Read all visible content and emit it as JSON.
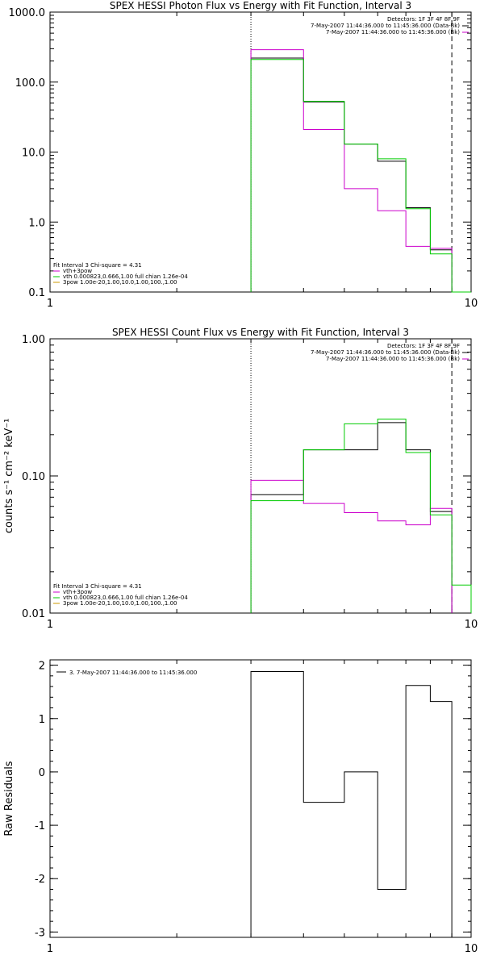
{
  "chart_data": [
    {
      "type": "line",
      "title": "SPEX HESSI Photon Flux vs Energy with Fit Function, Interval 3",
      "xlabel": "",
      "ylabel": "",
      "xscale": "log",
      "yscale": "log",
      "xlim": [
        1,
        10
      ],
      "ylim": [
        0.1,
        1000
      ],
      "xticks": [
        {
          "v": 1,
          "label": "1"
        },
        {
          "v": 10,
          "label": "10"
        }
      ],
      "yticks": [
        {
          "v": 1000,
          "label": "1000.0"
        },
        {
          "v": 100,
          "label": "100.0"
        },
        {
          "v": 10,
          "label": "10.0"
        },
        {
          "v": 1,
          "label": "1.0"
        },
        {
          "v": 0.1,
          "label": "0.1"
        }
      ],
      "vlines": [
        {
          "x": 3.0,
          "style": "dotted"
        },
        {
          "x": 9.0,
          "style": "dashed"
        }
      ],
      "info_lines": [
        "Detectors: 1F 3F 4F 8F 9F",
        "7-May-2007 11:44:36.000 to 11:45:36.000 (Data-Bk)",
        "7-May-2007 11:44:36.000 to 11:45:36.000 (Bk)"
      ],
      "info_colors": [
        "#000000",
        "#000000",
        "#cc00cc"
      ],
      "fit_lines": [
        "Fit Interval 3   Chi-square = 4.31",
        "vth+3pow",
        "vth 0.000823,0.666,1.00  full chian 1.26e-04",
        "3pow 1.00e-20,1.00,10.0,1.00,100.,1.00"
      ],
      "fit_colors": [
        "#000000",
        "#cc00cc",
        "#00cc00",
        "#cc9900"
      ],
      "bin_edges": [
        3.0,
        4.0,
        5.0,
        6.0,
        7.0,
        8.0,
        9.0,
        10.0
      ],
      "series": [
        {
          "name": "7-May-2007 11:44:36.000 to 11:45:36.000 (Data-Bk)",
          "color": "#000000",
          "values": [
            220,
            52,
            13,
            7.4,
            1.6,
            0.4,
            null
          ]
        },
        {
          "name": "7-May-2007 11:44:36.000 to 11:45:36.000 (Bk)",
          "color": "#cc00cc",
          "values": [
            290,
            21,
            3.0,
            1.45,
            0.45,
            0.42,
            null
          ]
        },
        {
          "name": "vth 0.000823,0.666,1.00  full chian 1.26e-04",
          "color": "#00cc00",
          "values": [
            210,
            53,
            13,
            8.0,
            1.55,
            0.35,
            0.1
          ]
        }
      ]
    },
    {
      "type": "line",
      "title": "SPEX HESSI Count Flux vs Energy with Fit Function, Interval 3",
      "xlabel": "",
      "ylabel": "counts s⁻¹ cm⁻² keV⁻¹",
      "xscale": "log",
      "yscale": "log",
      "xlim": [
        1,
        10
      ],
      "ylim": [
        0.01,
        1.0
      ],
      "xticks": [
        {
          "v": 1,
          "label": "1"
        },
        {
          "v": 10,
          "label": "10"
        }
      ],
      "yticks": [
        {
          "v": 1.0,
          "label": "1.00"
        },
        {
          "v": 0.1,
          "label": "0.10"
        },
        {
          "v": 0.01,
          "label": "0.01"
        }
      ],
      "vlines": [
        {
          "x": 3.0,
          "style": "dotted"
        },
        {
          "x": 9.0,
          "style": "dashed"
        }
      ],
      "info_lines": [
        "Detectors: 1F 3F 4F 8F 9F",
        "7-May-2007 11:44:36.000 to 11:45:36.000 (Data-Bk)",
        "7-May-2007 11:44:36.000 to 11:45:36.000 (Bk)"
      ],
      "info_colors": [
        "#000000",
        "#000000",
        "#cc00cc"
      ],
      "fit_lines": [
        "Fit Interval 3   Chi-square = 4.31",
        "vth+3pow",
        "vth 0.000823,0.666,1.00  full chian 1.26e-04",
        "3pow 1.00e-20,1.00,10.0,1.00,100.,1.00"
      ],
      "fit_colors": [
        "#000000",
        "#cc00cc",
        "#00cc00",
        "#cc9900"
      ],
      "bin_edges": [
        3.0,
        4.0,
        5.0,
        6.0,
        7.0,
        8.0,
        9.0,
        10.0
      ],
      "series": [
        {
          "name": "7-May-2007 11:44:36.000 to 11:45:36.000 (Data-Bk)",
          "color": "#000000",
          "values": [
            0.073,
            0.155,
            0.155,
            0.245,
            0.155,
            0.055,
            null
          ]
        },
        {
          "name": "7-May-2007 11:44:36.000 to 11:45:36.000 (Bk)",
          "color": "#cc00cc",
          "values": [
            0.093,
            0.063,
            0.054,
            0.047,
            0.044,
            0.058,
            null
          ]
        },
        {
          "name": "vth 0.000823,0.666,1.00  full chian 1.26e-04",
          "color": "#00cc00",
          "values": [
            0.066,
            0.155,
            0.24,
            0.26,
            0.148,
            0.052,
            0.016
          ]
        }
      ]
    },
    {
      "type": "line",
      "title": "",
      "xlabel": "",
      "ylabel": "Raw Residuals",
      "xscale": "log",
      "yscale": "linear",
      "xlim": [
        1,
        10
      ],
      "ylim": [
        -3.1,
        2.1
      ],
      "xticks": [
        {
          "v": 1,
          "label": "1"
        },
        {
          "v": 10,
          "label": "10"
        }
      ],
      "yticks": [
        {
          "v": 2,
          "label": "2"
        },
        {
          "v": 1,
          "label": "1"
        },
        {
          "v": 0,
          "label": "0"
        },
        {
          "v": -1,
          "label": "-1"
        },
        {
          "v": -2,
          "label": "-2"
        },
        {
          "v": -3,
          "label": "-3"
        }
      ],
      "legend_text": "3. 7-May-2007 11:44:36.000 to 11:45:36.000",
      "bin_edges": [
        3.0,
        4.0,
        5.0,
        6.0,
        7.0,
        8.0,
        9.0
      ],
      "series": [
        {
          "name": "3. 7-May-2007 11:44:36.000 to 11:45:36.000",
          "color": "#000000",
          "values": [
            1.88,
            -0.57,
            0.0,
            -2.2,
            1.62,
            1.32
          ]
        }
      ]
    }
  ]
}
